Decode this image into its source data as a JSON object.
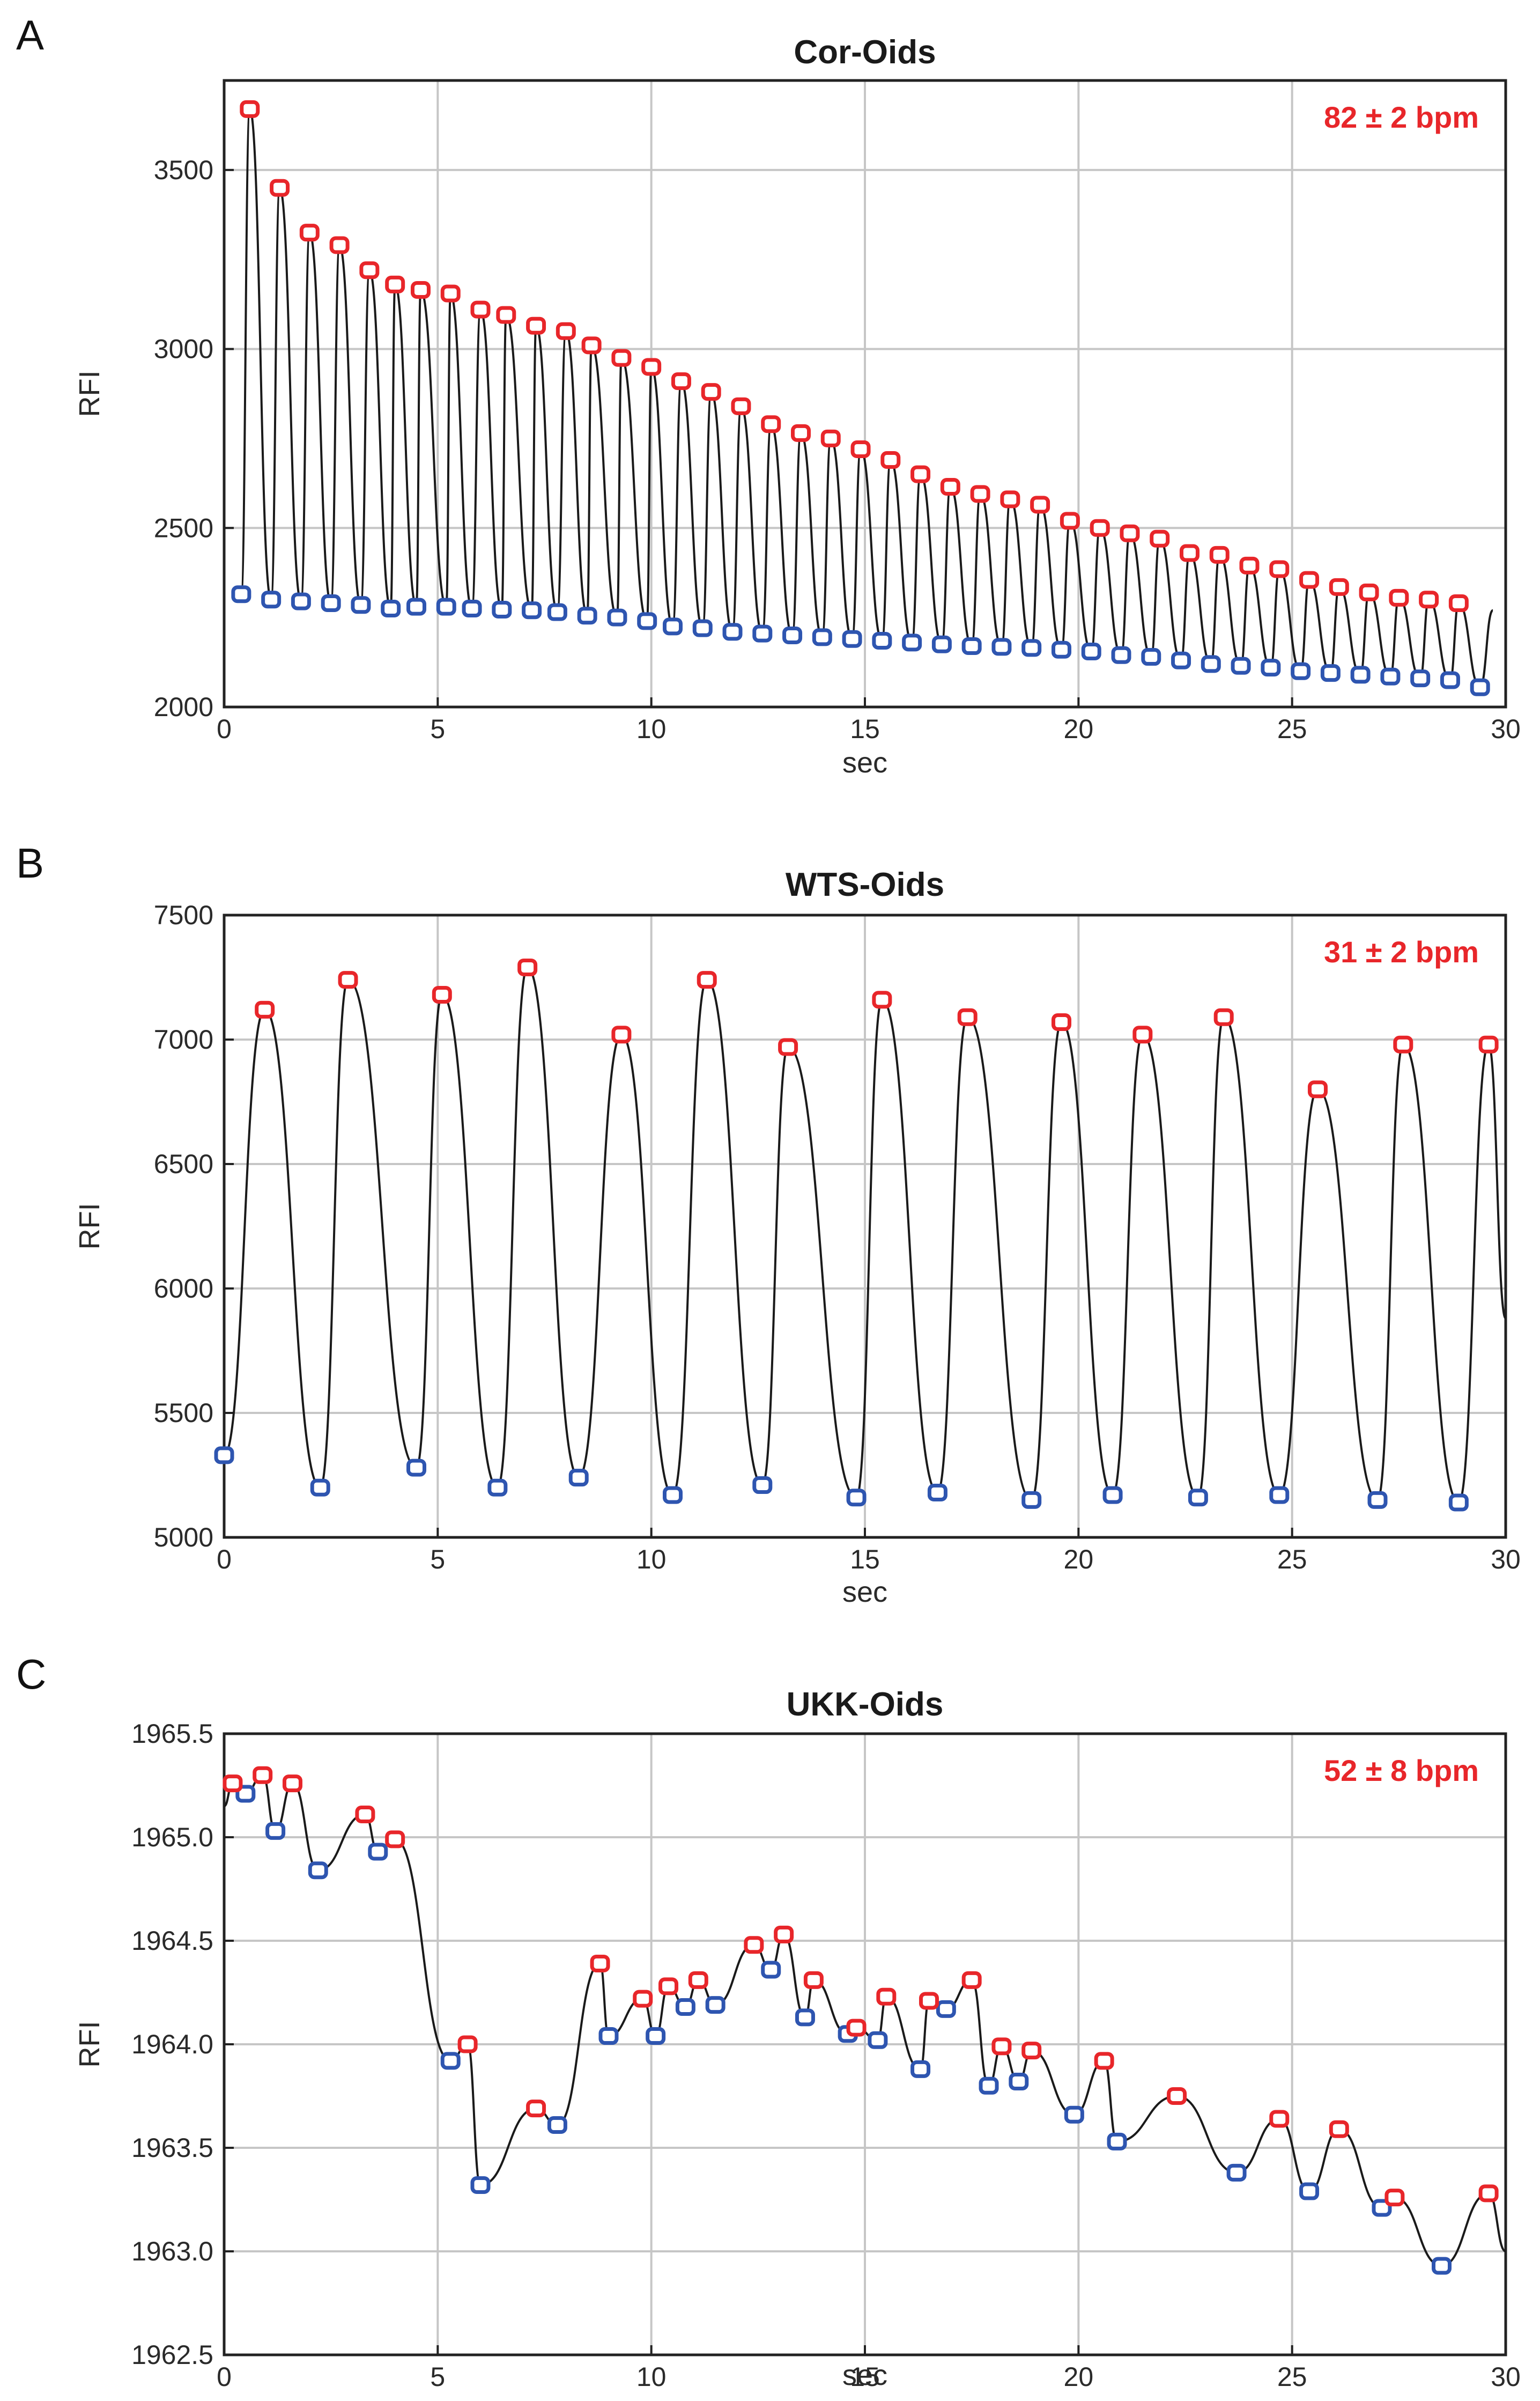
{
  "colors": {
    "peak_marker": "#e8262a",
    "trough_marker": "#2e55b0",
    "trace": "#1a1a1a",
    "grid": "#c6c6c6",
    "bpm_text": "#e8262a"
  },
  "chart_data": [
    {
      "panel_letter": "A",
      "type": "line",
      "title": "Cor-Oids",
      "annotation": "82 ± 2 bpm",
      "xlabel": "sec",
      "ylabel": "RFI",
      "xlim": [
        0,
        30
      ],
      "ylim": [
        2000,
        3750
      ],
      "x_ticks": [
        0,
        5,
        10,
        15,
        20,
        25,
        30
      ],
      "y_ticks": [
        2000,
        2500,
        3000,
        3500
      ],
      "x_tick_labels": [
        "0",
        "5",
        "10",
        "15",
        "20",
        "25",
        "30"
      ],
      "y_tick_labels": [
        "2000",
        "2500",
        "3000",
        "3500"
      ],
      "grid": true,
      "peak_times": [
        0.6,
        1.3,
        2.0,
        2.7,
        3.4,
        4.0,
        4.6,
        5.3,
        6.0,
        6.6,
        7.3,
        8.0,
        8.6,
        9.3,
        10.0,
        10.7,
        11.4,
        12.1,
        12.8,
        13.5,
        14.2,
        14.9,
        15.6,
        16.3,
        17.0,
        17.7,
        18.4,
        19.1,
        19.8,
        20.5,
        21.2,
        21.9,
        22.6,
        23.3,
        24.0,
        24.7,
        25.4,
        26.1,
        26.8,
        27.5,
        28.2,
        28.9
      ],
      "peak_values": [
        3670,
        3450,
        3325,
        3290,
        3220,
        3180,
        3165,
        3155,
        3110,
        3095,
        3065,
        3050,
        3010,
        2975,
        2950,
        2910,
        2880,
        2840,
        2790,
        2765,
        2750,
        2720,
        2690,
        2650,
        2615,
        2595,
        2580,
        2565,
        2520,
        2500,
        2485,
        2470,
        2430,
        2425,
        2395,
        2385,
        2355,
        2335,
        2320,
        2305,
        2300,
        2290
      ],
      "trough_times": [
        0.4,
        1.1,
        1.8,
        2.5,
        3.2,
        3.9,
        4.5,
        5.2,
        5.8,
        6.5,
        7.2,
        7.8,
        8.5,
        9.2,
        9.9,
        10.5,
        11.2,
        11.9,
        12.6,
        13.3,
        14.0,
        14.7,
        15.4,
        16.1,
        16.8,
        17.5,
        18.2,
        18.9,
        19.6,
        20.3,
        21.0,
        21.7,
        22.4,
        23.1,
        23.8,
        24.5,
        25.2,
        25.9,
        26.6,
        27.3,
        28.0,
        28.7,
        29.4
      ],
      "trough_values": [
        2315,
        2300,
        2295,
        2290,
        2285,
        2275,
        2280,
        2280,
        2275,
        2272,
        2270,
        2265,
        2255,
        2250,
        2240,
        2225,
        2220,
        2210,
        2205,
        2200,
        2195,
        2190,
        2185,
        2180,
        2175,
        2170,
        2168,
        2165,
        2160,
        2155,
        2145,
        2140,
        2130,
        2120,
        2115,
        2110,
        2100,
        2095,
        2090,
        2085,
        2080,
        2075,
        2055
      ],
      "trace_end": {
        "x": 29.7,
        "y": 2270
      }
    },
    {
      "panel_letter": "B",
      "type": "line",
      "title": "WTS-Oids",
      "annotation": "31 ± 2 bpm",
      "xlabel": "sec",
      "ylabel": "RFI",
      "xlim": [
        0,
        30
      ],
      "ylim": [
        5000,
        7500
      ],
      "x_ticks": [
        0,
        5,
        10,
        15,
        20,
        25,
        30
      ],
      "y_ticks": [
        5000,
        5500,
        6000,
        6500,
        7000,
        7500
      ],
      "x_tick_labels": [
        "0",
        "5",
        "10",
        "15",
        "20",
        "25",
        "30"
      ],
      "y_tick_labels": [
        "5000",
        "5500",
        "6000",
        "6500",
        "7000",
        "7500"
      ],
      "grid": true,
      "peak_times": [
        0.95,
        2.9,
        5.1,
        7.1,
        9.3,
        11.3,
        13.2,
        15.4,
        17.4,
        19.6,
        21.5,
        23.4,
        25.6,
        27.6,
        29.6
      ],
      "peak_values": [
        7120,
        7240,
        7180,
        7290,
        7020,
        7240,
        6970,
        7160,
        7090,
        7070,
        7020,
        7090,
        6800,
        6980,
        6980
      ],
      "trough_times": [
        0.0,
        2.25,
        4.5,
        6.4,
        8.3,
        10.5,
        12.6,
        14.8,
        16.7,
        18.9,
        20.8,
        22.8,
        24.7,
        27.0,
        28.9
      ],
      "trough_values": [
        5330,
        5200,
        5280,
        5200,
        5240,
        5170,
        5210,
        5160,
        5180,
        5150,
        5170,
        5160,
        5170,
        5150,
        5140
      ],
      "trace_end": {
        "x": 30.0,
        "y": 5880
      }
    },
    {
      "panel_letter": "C",
      "type": "line",
      "title": "UKK-Oids",
      "annotation": "52 ± 8 bpm",
      "xlabel": "sec",
      "ylabel": "RFI",
      "xlim": [
        0,
        30
      ],
      "ylim": [
        1962.5,
        1965.5
      ],
      "x_ticks": [
        0,
        5,
        10,
        15,
        20,
        25,
        30
      ],
      "y_ticks": [
        1962.5,
        1963.0,
        1963.5,
        1964.0,
        1964.5,
        1965.0,
        1965.5
      ],
      "x_tick_labels": [
        "0",
        "5",
        "10",
        "15",
        "20",
        "25",
        "30"
      ],
      "y_tick_labels": [
        "1962.5",
        "1963.0",
        "1963.5",
        "1964.0",
        "1964.5",
        "1965.0",
        "1965.5"
      ],
      "grid": true,
      "peak_times": [
        0.2,
        0.9,
        1.6,
        3.3,
        4.0,
        5.7,
        7.3,
        8.8,
        9.8,
        10.4,
        11.1,
        12.4,
        13.1,
        13.8,
        14.8,
        15.5,
        16.5,
        17.5,
        18.2,
        18.9,
        20.6,
        22.3,
        24.7,
        26.1,
        27.4,
        29.6
      ],
      "peak_values": [
        1965.26,
        1965.3,
        1965.26,
        1965.11,
        1964.99,
        1964.0,
        1963.69,
        1964.39,
        1964.22,
        1964.28,
        1964.31,
        1964.48,
        1964.53,
        1964.31,
        1964.08,
        1964.23,
        1964.21,
        1964.31,
        1963.99,
        1963.97,
        1963.92,
        1963.75,
        1963.64,
        1963.59,
        1963.26,
        1963.28
      ],
      "trough_times": [
        0.5,
        1.2,
        2.2,
        3.6,
        5.3,
        6.0,
        7.8,
        9.0,
        10.1,
        10.8,
        11.5,
        12.8,
        13.6,
        14.6,
        15.3,
        16.3,
        16.9,
        17.9,
        18.6,
        19.9,
        20.9,
        23.7,
        25.4,
        27.1,
        28.5
      ],
      "trough_values": [
        1965.21,
        1965.03,
        1964.84,
        1964.93,
        1963.92,
        1963.32,
        1963.61,
        1964.04,
        1964.04,
        1964.18,
        1964.19,
        1964.36,
        1964.13,
        1964.05,
        1964.02,
        1963.88,
        1964.17,
        1963.8,
        1963.82,
        1963.66,
        1963.53,
        1963.38,
        1963.29,
        1963.21,
        1962.93
      ],
      "trace_start": {
        "x": 0.0,
        "y": 1965.15
      },
      "trace_end": {
        "x": 30.0,
        "y": 1963.0
      }
    }
  ]
}
